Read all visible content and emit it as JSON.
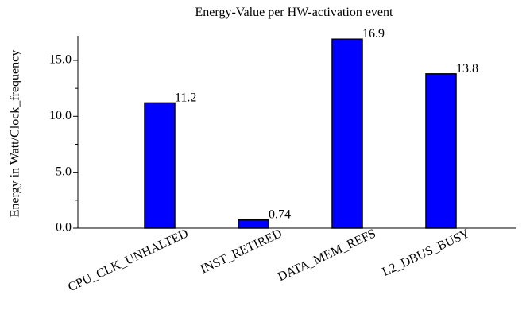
{
  "chart_data": {
    "type": "bar",
    "title": "Energy-Value per HW-activation event",
    "y_label": "Energy in Watt/Clock_frequency",
    "categories": [
      "CPU_CLK_UNHALTED",
      "INST_RETIRED",
      "DATA_MEM_REFS",
      "L2_DBUS_BUSY"
    ],
    "values": [
      11.2,
      0.74,
      16.9,
      13.8
    ],
    "color": "#0000ff",
    "ylim": [
      0,
      17.2
    ],
    "yticks": [
      {
        "value": 0,
        "label": "0.0"
      },
      {
        "value": 5,
        "label": "5.0"
      },
      {
        "value": 10,
        "label": "10.0"
      },
      {
        "value": 15,
        "label": "15.0"
      }
    ],
    "yminorticks": [
      2.5,
      7.5,
      12.5
    ],
    "grid": false
  }
}
